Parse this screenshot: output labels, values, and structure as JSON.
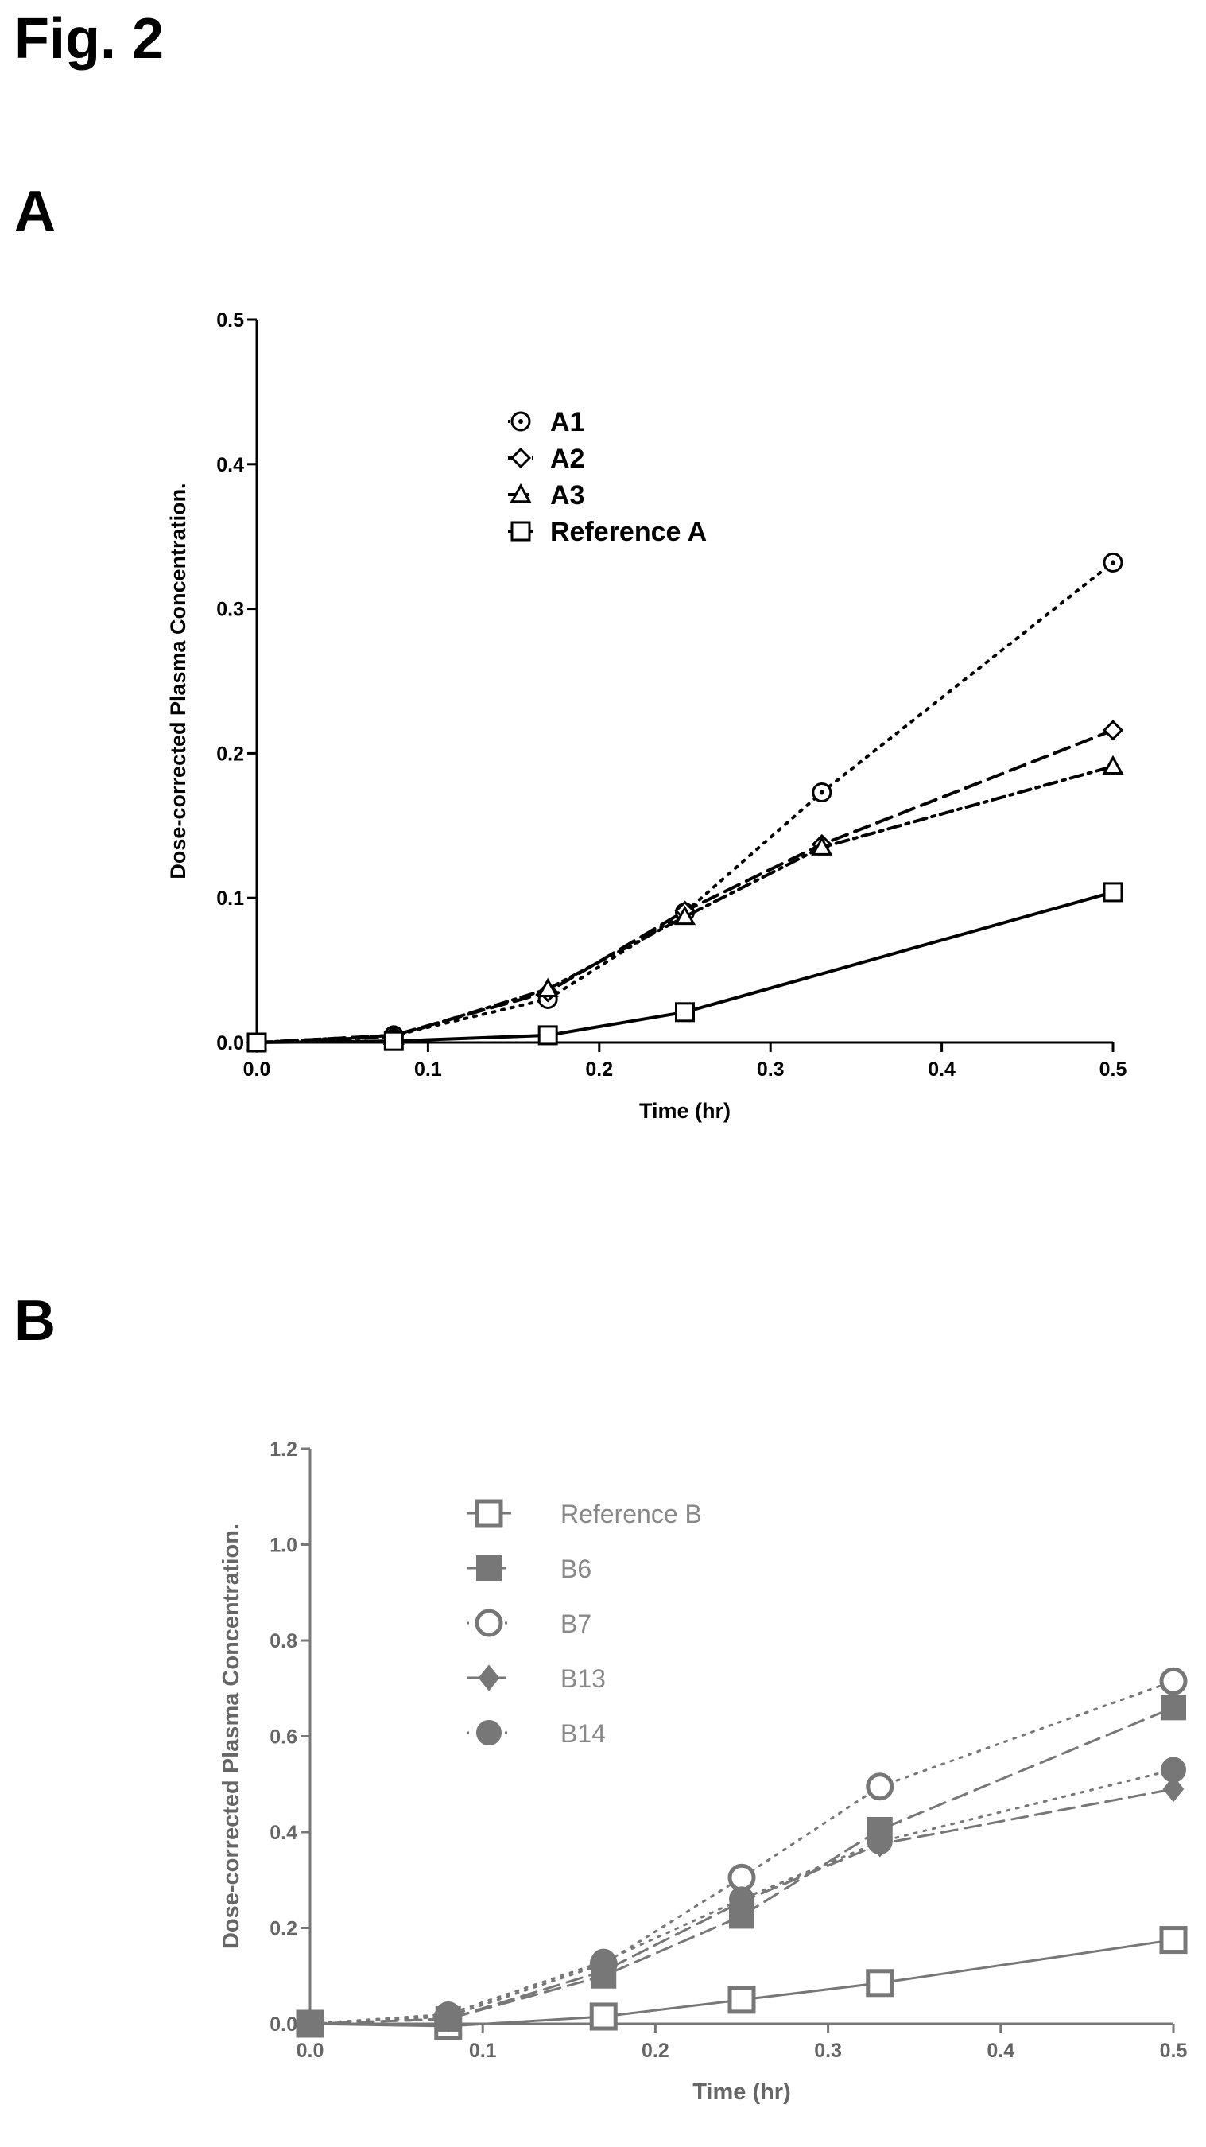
{
  "figure_title": "Fig. 2",
  "panels": [
    {
      "label": "A"
    },
    {
      "label": "B"
    }
  ],
  "chart_data": [
    {
      "type": "line",
      "panel": "A",
      "xlabel": "Time (hr)",
      "ylabel": "Dose-corrected Plasma Concentration.",
      "xlim": [
        0.0,
        0.5
      ],
      "ylim": [
        0.0,
        0.5
      ],
      "xticks": [
        "0.0",
        "0.1",
        "0.2",
        "0.3",
        "0.4",
        "0.5"
      ],
      "yticks": [
        "0.0",
        "0.1",
        "0.2",
        "0.3",
        "0.4",
        "0.5"
      ],
      "x": [
        0.0,
        0.08,
        0.17,
        0.25,
        0.33,
        0.5
      ],
      "legend_position": "top-center",
      "series": [
        {
          "name": "A1",
          "marker": "circle-dot",
          "line": "dotted",
          "values": [
            0.0,
            0.005,
            0.03,
            0.09,
            0.173,
            0.332
          ]
        },
        {
          "name": "A2",
          "marker": "diamond",
          "line": "dashed",
          "values": [
            0.0,
            0.005,
            0.035,
            0.091,
            0.137,
            0.216
          ]
        },
        {
          "name": "A3",
          "marker": "triangle",
          "line": "dash-dot",
          "values": [
            0.0,
            0.004,
            0.037,
            0.087,
            0.135,
            0.191
          ]
        },
        {
          "name": "Reference A",
          "marker": "square",
          "line": "solid",
          "values": [
            0.0,
            0.001,
            0.005,
            0.021,
            null,
            0.104
          ]
        }
      ]
    },
    {
      "type": "line",
      "panel": "B",
      "xlabel": "Time (hr)",
      "ylabel": "Dose-corrected Plasma Concentration.",
      "xlim": [
        0.0,
        0.5
      ],
      "ylim": [
        0.0,
        1.2
      ],
      "xticks": [
        "0.0",
        "0.1",
        "0.2",
        "0.3",
        "0.4",
        "0.5"
      ],
      "yticks": [
        "0.0",
        "0.2",
        "0.4",
        "0.6",
        "0.8",
        "1.0",
        "1.2"
      ],
      "x": [
        0.0,
        0.08,
        0.17,
        0.25,
        0.33,
        0.5
      ],
      "legend_position": "top-center",
      "series": [
        {
          "name": "Reference B",
          "marker": "square-open",
          "line": "solid",
          "values": [
            0.0,
            -0.005,
            0.015,
            0.05,
            0.085,
            0.175
          ]
        },
        {
          "name": "B6",
          "marker": "square-filled",
          "line": "dashed",
          "values": [
            0.0,
            0.01,
            0.1,
            0.225,
            0.405,
            0.66
          ]
        },
        {
          "name": "B7",
          "marker": "circle-open",
          "line": "dotted",
          "values": [
            0.0,
            0.015,
            0.125,
            0.305,
            0.495,
            0.715
          ]
        },
        {
          "name": "B13",
          "marker": "diamond-filled",
          "line": "dashed",
          "values": [
            0.0,
            0.01,
            0.11,
            0.255,
            0.375,
            0.49
          ]
        },
        {
          "name": "B14",
          "marker": "circle-filled",
          "line": "dotted",
          "values": [
            0.0,
            0.02,
            0.13,
            0.26,
            0.38,
            0.53
          ]
        }
      ]
    }
  ]
}
